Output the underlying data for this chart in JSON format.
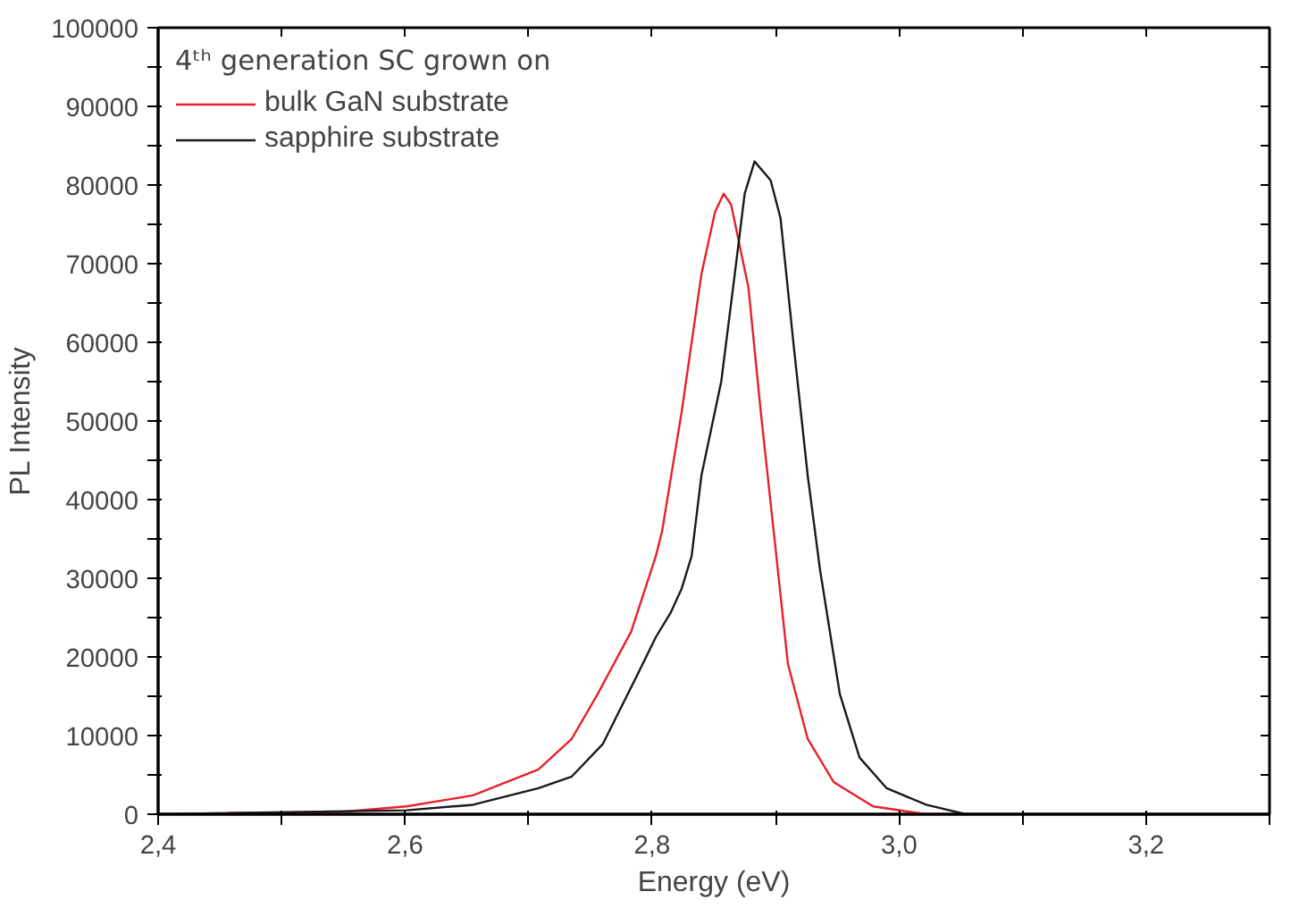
{
  "chart_data": {
    "type": "line",
    "xlabel": "Energy (eV)",
    "ylabel": "PL Intensity",
    "legend_title": "4ᵗʰ generation SC grown on",
    "xlim": [
      2.4,
      3.3
    ],
    "ylim": [
      0,
      100000
    ],
    "xticks": [
      {
        "value": 2.4,
        "label": "2,4"
      },
      {
        "value": 2.5,
        "label": null
      },
      {
        "value": 2.6,
        "label": "2,6"
      },
      {
        "value": 2.7,
        "label": null
      },
      {
        "value": 2.8,
        "label": "2,8"
      },
      {
        "value": 2.9,
        "label": null
      },
      {
        "value": 3.0,
        "label": "3,0"
      },
      {
        "value": 3.1,
        "label": null
      },
      {
        "value": 3.2,
        "label": "3,2"
      },
      {
        "value": 3.3,
        "label": null
      }
    ],
    "yticks": [
      0,
      {
        "value": 5000,
        "label": null
      },
      10000,
      {
        "value": 15000,
        "label": null
      },
      20000,
      {
        "value": 25000,
        "label": null
      },
      30000,
      {
        "value": 35000,
        "label": null
      },
      40000,
      {
        "value": 45000,
        "label": null
      },
      50000,
      {
        "value": 55000,
        "label": null
      },
      60000,
      {
        "value": 65000,
        "label": null
      },
      70000,
      {
        "value": 75000,
        "label": null
      },
      80000,
      {
        "value": 85000,
        "label": null
      },
      90000,
      {
        "value": 95000,
        "label": null
      },
      100000
    ],
    "grid": false,
    "legend": "top left",
    "line_style": "solid",
    "marker": "none",
    "series": [
      {
        "name": "bulk GaN substrate",
        "color": "#e8202a",
        "x": [
          2.4,
          2.548,
          2.601,
          2.655,
          2.708,
          2.735,
          2.756,
          2.783,
          2.803,
          2.808,
          2.824,
          2.84,
          2.851,
          2.858,
          2.864,
          2.878,
          2.888,
          2.899,
          2.91,
          2.926,
          2.947,
          2.979,
          3.022,
          3.3
        ],
        "values": [
          0,
          300,
          1000,
          2400,
          5700,
          9600,
          15300,
          23200,
          32800,
          35900,
          51200,
          68700,
          76600,
          78900,
          77500,
          67000,
          51200,
          35200,
          19100,
          9600,
          4100,
          1000,
          0,
          0
        ]
      },
      {
        "name": "sapphire substrate",
        "color": "#1a1a1a",
        "x": [
          2.4,
          2.601,
          2.655,
          2.708,
          2.735,
          2.76,
          2.788,
          2.803,
          2.815,
          2.824,
          2.832,
          2.84,
          2.856,
          2.867,
          2.875,
          2.883,
          2.896,
          2.904,
          2.915,
          2.926,
          2.936,
          2.952,
          2.968,
          2.99,
          3.022,
          3.054,
          3.3
        ],
        "values": [
          0,
          500,
          1200,
          3300,
          4800,
          8900,
          17700,
          22500,
          25600,
          28700,
          32800,
          43100,
          55000,
          68700,
          78900,
          83000,
          80600,
          75800,
          59100,
          43100,
          31100,
          15300,
          7200,
          3300,
          1200,
          0,
          0
        ]
      }
    ]
  }
}
